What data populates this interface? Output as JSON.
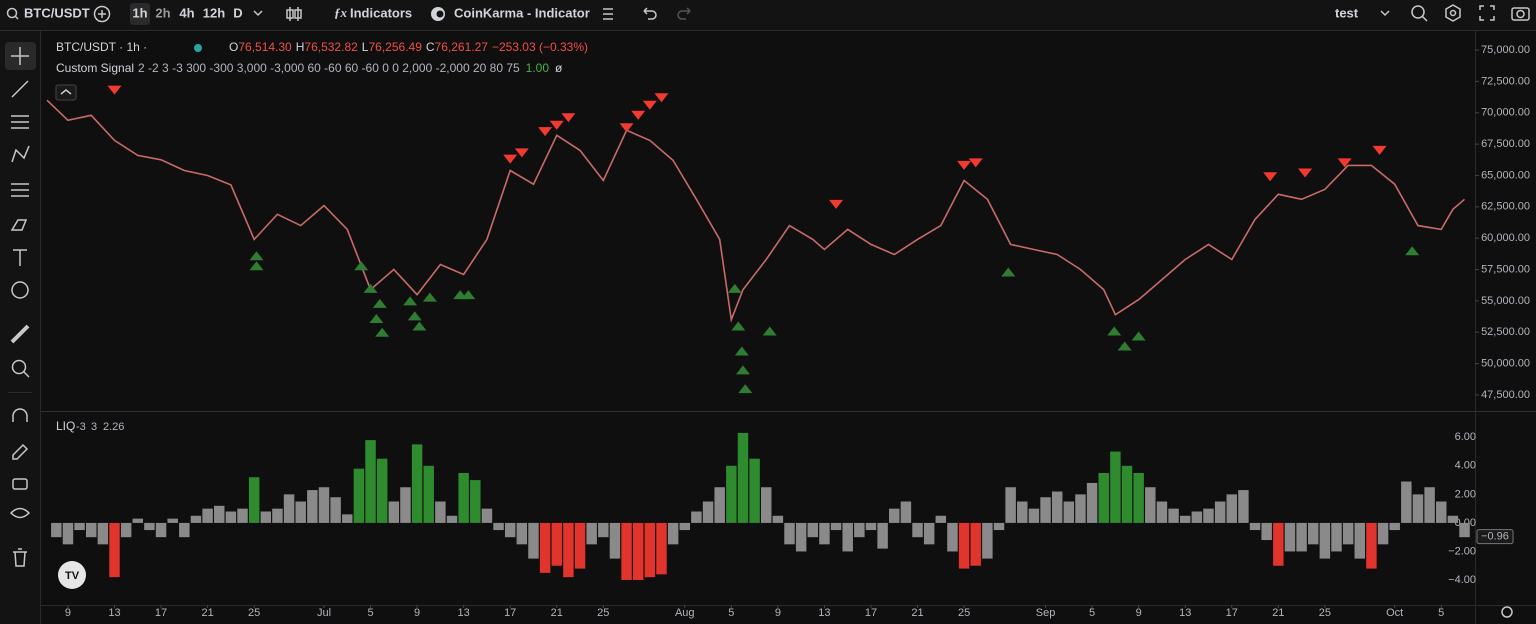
{
  "toolbar": {
    "symbol": "BTC/USDT",
    "intervals": [
      "1h",
      "2h",
      "4h",
      "12h",
      "D"
    ],
    "indicators": "Indicators",
    "script": "CoinKarma - Indicator",
    "layout": "test"
  },
  "legend": {
    "title": "BTC/USDT · 1h ·",
    "ohlc": [
      {
        "key": "O",
        "value": "76,514.30"
      },
      {
        "key": "H",
        "value": "76,532.82"
      },
      {
        "key": "L",
        "value": "76,256.49"
      },
      {
        "key": "C",
        "value": "76,261.27"
      }
    ],
    "change": "−253.03 (−0.33%)",
    "study": "Custom Signal",
    "study_params": "2 -2 3 -3 300 -300 3,000 -3,000 60 -60 60 -60 0 0 2,000 -2,000 20 80 75",
    "study_value": "1.00",
    "study_extra": "ø"
  },
  "chart_data": [
    {
      "type": "line",
      "color": "#c96a6a",
      "xlim": [
        6.2,
        128.9
      ],
      "ylim": [
        46300,
        76200
      ],
      "grid": false,
      "xticks": [
        {
          "value": 8,
          "label": "9"
        },
        {
          "value": 12,
          "label": "13"
        },
        {
          "value": 16,
          "label": "17"
        },
        {
          "value": 20,
          "label": "21"
        },
        {
          "value": 24,
          "label": "25"
        },
        {
          "value": 30,
          "label": "Jul"
        },
        {
          "value": 34,
          "label": "5"
        },
        {
          "value": 38,
          "label": "9"
        },
        {
          "value": 42,
          "label": "13"
        },
        {
          "value": 46,
          "label": "17"
        },
        {
          "value": 50,
          "label": "21"
        },
        {
          "value": 54,
          "label": "25"
        },
        {
          "value": 61,
          "label": "Aug"
        },
        {
          "value": 65,
          "label": "5"
        },
        {
          "value": 69,
          "label": "9"
        },
        {
          "value": 73,
          "label": "13"
        },
        {
          "value": 77,
          "label": "17"
        },
        {
          "value": 81,
          "label": "21"
        },
        {
          "value": 85,
          "label": "25"
        },
        {
          "value": 92,
          "label": "Sep"
        },
        {
          "value": 96,
          "label": "5"
        },
        {
          "value": 100,
          "label": "9"
        },
        {
          "value": 104,
          "label": "13"
        },
        {
          "value": 108,
          "label": "17"
        },
        {
          "value": 112,
          "label": "21"
        },
        {
          "value": 116,
          "label": "25"
        },
        {
          "value": 122,
          "label": "Oct"
        },
        {
          "value": 126,
          "label": "5"
        }
      ],
      "yticks": [
        {
          "value": 47500,
          "label": "47,500.00"
        },
        {
          "value": 50000,
          "label": "50,000.00"
        },
        {
          "value": 52500,
          "label": "52,500.00"
        },
        {
          "value": 55000,
          "label": "55,000.00"
        },
        {
          "value": 57500,
          "label": "57,500.00"
        },
        {
          "value": 60000,
          "label": "60,000.00"
        },
        {
          "value": 62500,
          "label": "62,500.00"
        },
        {
          "value": 65000,
          "label": "65,000.00"
        },
        {
          "value": 67500,
          "label": "67,500.00"
        },
        {
          "value": 70000,
          "label": "70,000.00"
        },
        {
          "value": 72500,
          "label": "72,500.00"
        },
        {
          "value": 75000,
          "label": "75,000.00"
        }
      ],
      "x": [
        6.2,
        8,
        10,
        12,
        14,
        16,
        18,
        20,
        22,
        24,
        26,
        28,
        30,
        32,
        34,
        36,
        38,
        40,
        42,
        44,
        46,
        48,
        50,
        52,
        54,
        56,
        58,
        60,
        62,
        64,
        65,
        66,
        68,
        70,
        72,
        73,
        75,
        77,
        79,
        81,
        83,
        85,
        87,
        89,
        91,
        93,
        95,
        97,
        98,
        100,
        102,
        104,
        106,
        108,
        110,
        112,
        114,
        116,
        118,
        120,
        122,
        124,
        126,
        127,
        128
      ],
      "values": [
        71000,
        69400,
        69800,
        67800,
        66600,
        66250,
        65400,
        65000,
        64250,
        59900,
        61900,
        61000,
        62600,
        60700,
        55900,
        57500,
        55500,
        57900,
        57100,
        59900,
        65400,
        64300,
        68200,
        67000,
        64600,
        68600,
        67800,
        66200,
        63100,
        59900,
        53500,
        55900,
        58300,
        61000,
        59900,
        59100,
        60700,
        59500,
        58700,
        59900,
        61000,
        64600,
        63100,
        59500,
        59100,
        58700,
        57500,
        55900,
        53900,
        55100,
        56700,
        58300,
        59500,
        58300,
        61500,
        63500,
        63100,
        63900,
        65800,
        65800,
        64300,
        61000,
        60700,
        62300,
        63100
      ],
      "sell_signals": {
        "color": "#f23a2f",
        "x": [
          12,
          46,
          47,
          49,
          50,
          51,
          56,
          57,
          58,
          59,
          74,
          85,
          86,
          111.3,
          114.3,
          117.7,
          120.7
        ],
        "values": [
          71800,
          66300,
          66800,
          68500,
          69000,
          69600,
          68800,
          69800,
          70600,
          71200,
          62700,
          65800,
          66000,
          64900,
          65200,
          66000,
          67000
        ]
      },
      "buy_signals": {
        "color": "#2e7d32",
        "x": [
          24.2,
          24.2,
          33.2,
          34.0,
          34.8,
          34.5,
          35.0,
          37.4,
          37.8,
          38.2,
          39.1,
          41.7,
          42.4,
          65.3,
          65.6,
          65.9,
          66.0,
          66.2,
          68.3,
          88.8,
          97.9,
          98.8,
          100,
          123.5
        ],
        "values": [
          57800,
          58600,
          57800,
          56000,
          54800,
          53600,
          52500,
          55000,
          53800,
          53000,
          55300,
          55500,
          55500,
          56000,
          53000,
          51000,
          49500,
          48000,
          52600,
          57300,
          52600,
          51400,
          52200,
          59000
        ]
      }
    },
    {
      "type": "bar",
      "title": "LIQ",
      "thresholds": [
        -3,
        3
      ],
      "legend_value": 2.26,
      "color": "#8a8a8a",
      "up_color": "#2e8b2e",
      "down_color": "#e0342c",
      "xlim": [
        6.2,
        128.9
      ],
      "ylim": [
        -5.75,
        7.7
      ],
      "yticks": [
        {
          "value": 6,
          "label": "6.00"
        },
        {
          "value": 4,
          "label": "4.00"
        },
        {
          "value": 2,
          "label": "2.00"
        },
        {
          "value": 0,
          "label": "0.00"
        },
        {
          "value": -2,
          "label": "−2.00"
        },
        {
          "value": -4,
          "label": "−4.00"
        }
      ],
      "last_value": {
        "value": -0.96,
        "label": "−0.96"
      },
      "x": [
        7,
        8,
        9,
        10,
        11,
        12,
        13,
        14,
        15,
        16,
        17,
        18,
        19,
        20,
        21,
        22,
        23,
        24,
        25,
        26,
        27,
        28,
        29,
        30,
        31,
        32,
        33,
        34,
        35,
        36,
        37,
        38,
        39,
        40,
        41,
        42,
        43,
        44,
        45,
        46,
        47,
        48,
        49,
        50,
        51,
        52,
        53,
        54,
        55,
        56,
        57,
        58,
        59,
        60,
        61,
        62,
        63,
        64,
        65,
        66,
        67,
        68,
        69,
        70,
        71,
        72,
        73,
        74,
        75,
        76,
        77,
        78,
        79,
        80,
        81,
        82,
        83,
        84,
        85,
        86,
        87,
        88,
        89,
        90,
        91,
        92,
        93,
        94,
        95,
        96,
        97,
        98,
        99,
        100,
        101,
        102,
        103,
        104,
        105,
        106,
        107,
        108,
        109,
        110,
        111,
        112,
        113,
        114,
        115,
        116,
        117,
        118,
        119,
        120,
        121,
        122,
        123,
        124,
        125,
        126,
        127,
        128
      ],
      "values": [
        -1.0,
        -1.5,
        -0.5,
        -1.0,
        -1.5,
        -3.8,
        -1.0,
        0.3,
        -0.5,
        -1.0,
        0.3,
        -1.0,
        0.5,
        1.0,
        1.2,
        0.8,
        1.0,
        3.2,
        0.8,
        1.0,
        2.0,
        1.5,
        2.3,
        2.5,
        1.8,
        0.6,
        3.8,
        5.8,
        4.5,
        1.5,
        2.5,
        5.5,
        4.0,
        1.5,
        0.5,
        3.5,
        3.0,
        1.0,
        -0.5,
        -1.0,
        -1.5,
        -2.5,
        -3.5,
        -3.0,
        -3.8,
        -3.2,
        -1.5,
        -1.0,
        -2.5,
        -4.0,
        -4.0,
        -3.8,
        -3.6,
        -1.5,
        -0.5,
        0.8,
        1.5,
        2.5,
        4.0,
        6.3,
        4.5,
        2.5,
        0.5,
        -1.5,
        -2.0,
        -1.0,
        -1.5,
        -0.5,
        -2.0,
        -1.0,
        -0.5,
        -1.8,
        1.0,
        1.5,
        -1.0,
        -1.5,
        0.5,
        -2.0,
        -3.2,
        -3.0,
        -2.5,
        -0.5,
        2.5,
        1.5,
        1.0,
        1.8,
        2.2,
        1.5,
        2.0,
        2.8,
        3.5,
        5.0,
        4.0,
        3.5,
        2.5,
        1.5,
        1.0,
        0.5,
        0.8,
        1.0,
        1.5,
        2.0,
        2.3,
        -0.5,
        -1.2,
        -3.0,
        -2.0,
        -2.0,
        -1.5,
        -2.5,
        -2.0,
        -1.5,
        -2.5,
        -3.2,
        -1.5,
        -0.5,
        2.9,
        2.0,
        2.5,
        1.5,
        0.5,
        -1.0
      ]
    }
  ]
}
